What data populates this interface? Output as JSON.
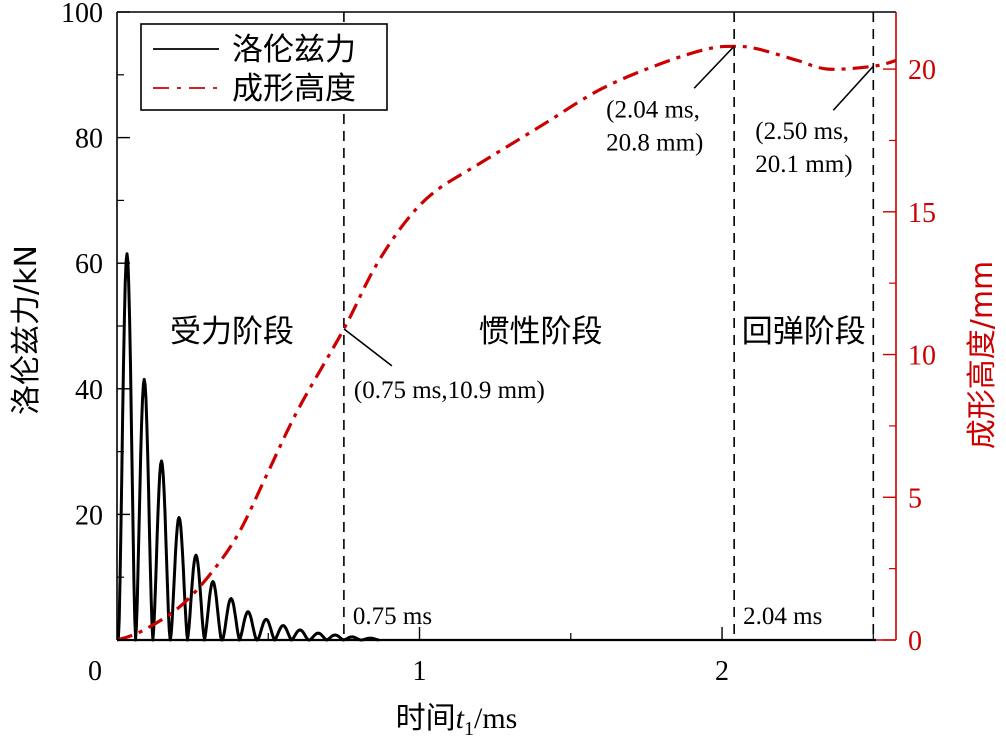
{
  "chart_data": {
    "type": "line",
    "title": "",
    "xlabel": "时间t1/ms",
    "xlabel_parts": {
      "prefix": "时间",
      "var": "t",
      "sub": "1",
      "suffix": "/ms"
    },
    "ylabel_left": "洛伦兹力/kN",
    "ylabel_right": "成形高度/mm",
    "xlim": [
      0,
      2.575
    ],
    "ylim_left": [
      0,
      100
    ],
    "ylim_right": [
      0,
      22
    ],
    "x_ticks": [
      {
        "v": 0,
        "label": "0"
      },
      {
        "v": 1,
        "label": "1"
      },
      {
        "v": 2,
        "label": "2"
      }
    ],
    "x_minor_ticks": [
      0.5,
      1.5,
      2.5
    ],
    "y_left_ticks": [
      {
        "v": 0,
        "label": "0"
      },
      {
        "v": 20,
        "label": "20"
      },
      {
        "v": 40,
        "label": "40"
      },
      {
        "v": 60,
        "label": "60"
      },
      {
        "v": 80,
        "label": "80"
      },
      {
        "v": 100,
        "label": "100"
      }
    ],
    "y_left_minor_ticks": [
      10,
      30,
      50,
      70,
      90
    ],
    "y_right_ticks": [
      {
        "v": 0,
        "label": "0"
      },
      {
        "v": 5,
        "label": "5"
      },
      {
        "v": 10,
        "label": "10"
      },
      {
        "v": 15,
        "label": "15"
      },
      {
        "v": 20,
        "label": "20"
      }
    ],
    "y_right_minor_ticks": [
      2.5,
      7.5,
      12.5,
      17.5
    ],
    "grid": false,
    "legend": {
      "position": "top-left",
      "entries": [
        {
          "label": "洛伦兹力",
          "color": "#000000",
          "style": "solid"
        },
        {
          "label": "成形高度",
          "color": "#cc0000",
          "style": "dash-dot"
        }
      ]
    },
    "series": [
      {
        "name": "洛伦兹力",
        "axis": "left",
        "color": "#000000",
        "style": "solid",
        "kind": "damped-rectified-oscillation",
        "peaks": [
          {
            "x": 0.033,
            "y": 61.5
          },
          {
            "x": 0.09,
            "y": 41.5
          },
          {
            "x": 0.147,
            "y": 28.5
          },
          {
            "x": 0.205,
            "y": 19.5
          },
          {
            "x": 0.261,
            "y": 13.5
          },
          {
            "x": 0.317,
            "y": 9.3
          },
          {
            "x": 0.377,
            "y": 6.6
          },
          {
            "x": 0.433,
            "y": 4.5
          },
          {
            "x": 0.493,
            "y": 3.3
          },
          {
            "x": 0.549,
            "y": 2.3
          },
          {
            "x": 0.605,
            "y": 1.6
          },
          {
            "x": 0.665,
            "y": 1.1
          },
          {
            "x": 0.721,
            "y": 0.8
          },
          {
            "x": 0.777,
            "y": 0.5
          },
          {
            "x": 0.837,
            "y": 0.3
          }
        ],
        "half_period": 0.0575
      },
      {
        "name": "成形高度",
        "axis": "right",
        "color": "#cc0000",
        "style": "dash-dot",
        "points": [
          [
            0.0,
            0.0
          ],
          [
            0.08,
            0.3
          ],
          [
            0.2,
            1.1
          ],
          [
            0.3,
            2.2
          ],
          [
            0.4,
            3.7
          ],
          [
            0.5,
            5.9
          ],
          [
            0.6,
            8.1
          ],
          [
            0.75,
            10.9
          ],
          [
            0.85,
            13.0
          ],
          [
            0.95,
            14.6
          ],
          [
            1.05,
            15.7
          ],
          [
            1.2,
            16.7
          ],
          [
            1.4,
            18.0
          ],
          [
            1.6,
            19.3
          ],
          [
            1.8,
            20.2
          ],
          [
            1.95,
            20.7
          ],
          [
            2.04,
            20.8
          ],
          [
            2.12,
            20.7
          ],
          [
            2.25,
            20.3
          ],
          [
            2.35,
            20.0
          ],
          [
            2.5,
            20.1
          ],
          [
            2.575,
            20.3
          ]
        ]
      }
    ],
    "vlines": [
      {
        "x": 0.75,
        "style": "dashed",
        "label": "0.75 ms"
      },
      {
        "x": 2.04,
        "style": "dashed",
        "label": "2.04 ms"
      },
      {
        "x": 2.5,
        "style": "dashed",
        "label": ""
      }
    ],
    "regions": [
      {
        "label": "受力阶段",
        "x_center": 0.38,
        "y_right": 10.9
      },
      {
        "label": "惯性阶段",
        "x_center": 1.4,
        "y_right": 10.9
      },
      {
        "label": "回弹阶段",
        "x_center": 2.27,
        "y_right": 10.9
      }
    ],
    "annotations": [
      {
        "text": "(0.75 ms,10.9 mm)",
        "x": 0.75,
        "y_right": 10.9
      },
      {
        "text_lines": [
          "(2.04 ms,",
          "20.8 mm)"
        ],
        "x": 2.04,
        "y_right": 20.8
      },
      {
        "text_lines": [
          "(2.50 ms,",
          "20.1 mm)"
        ],
        "x": 2.5,
        "y_right": 20.1
      }
    ]
  },
  "colors": {
    "red": "#cc0000",
    "black": "#000000"
  }
}
